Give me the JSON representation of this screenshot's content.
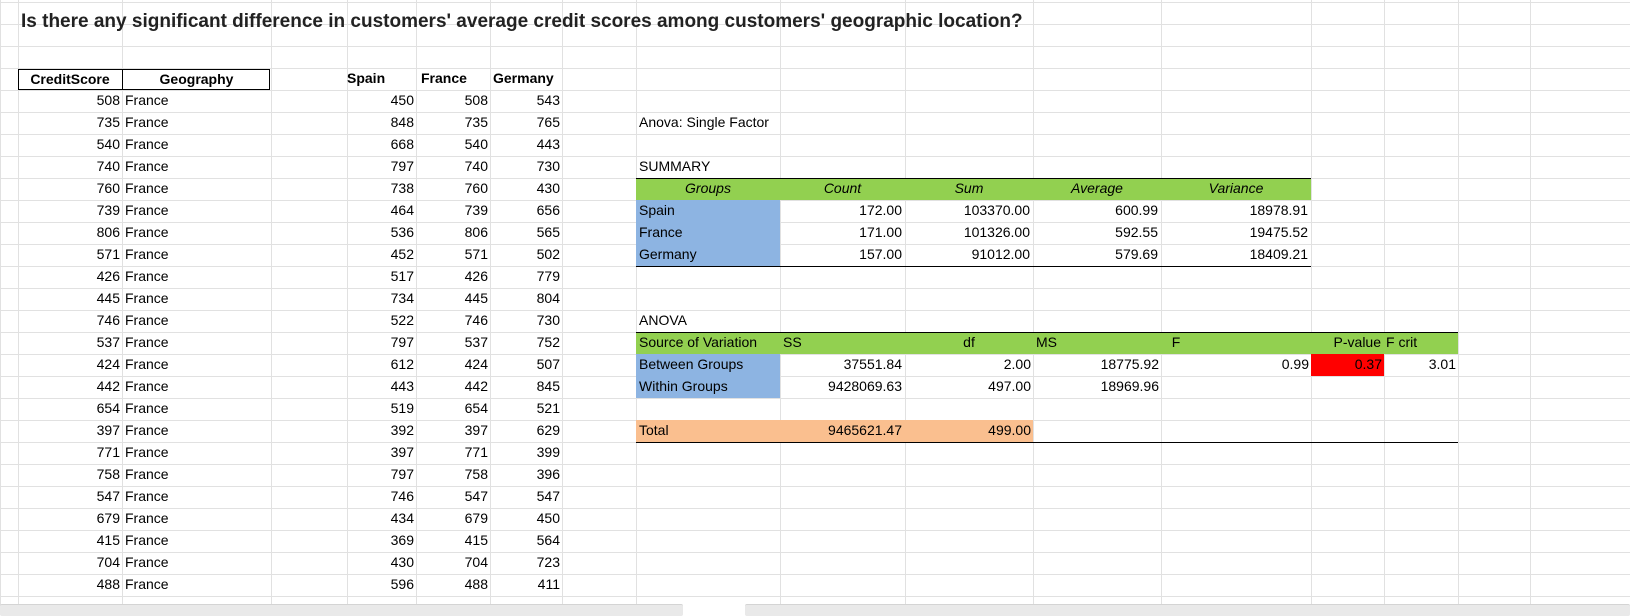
{
  "title": "Is there any significant difference in customers' average credit scores among customers' geographic location?",
  "source_table": {
    "headers": [
      "CreditScore",
      "Geography"
    ],
    "rows": [
      [
        508,
        "France"
      ],
      [
        735,
        "France"
      ],
      [
        540,
        "France"
      ],
      [
        740,
        "France"
      ],
      [
        760,
        "France"
      ],
      [
        739,
        "France"
      ],
      [
        806,
        "France"
      ],
      [
        571,
        "France"
      ],
      [
        426,
        "France"
      ],
      [
        445,
        "France"
      ],
      [
        746,
        "France"
      ],
      [
        537,
        "France"
      ],
      [
        424,
        "France"
      ],
      [
        442,
        "France"
      ],
      [
        654,
        "France"
      ],
      [
        397,
        "France"
      ],
      [
        771,
        "France"
      ],
      [
        758,
        "France"
      ],
      [
        547,
        "France"
      ],
      [
        679,
        "France"
      ],
      [
        415,
        "France"
      ],
      [
        704,
        "France"
      ],
      [
        488,
        "France"
      ]
    ]
  },
  "by_country": {
    "headers": [
      "Spain",
      "France",
      "Germany"
    ],
    "rows": [
      [
        450,
        508,
        543
      ],
      [
        848,
        735,
        765
      ],
      [
        668,
        540,
        443
      ],
      [
        797,
        740,
        730
      ],
      [
        738,
        760,
        430
      ],
      [
        464,
        739,
        656
      ],
      [
        536,
        806,
        565
      ],
      [
        452,
        571,
        502
      ],
      [
        517,
        426,
        779
      ],
      [
        734,
        445,
        804
      ],
      [
        522,
        746,
        730
      ],
      [
        797,
        537,
        752
      ],
      [
        612,
        424,
        507
      ],
      [
        443,
        442,
        845
      ],
      [
        519,
        654,
        521
      ],
      [
        392,
        397,
        629
      ],
      [
        397,
        771,
        399
      ],
      [
        797,
        758,
        396
      ],
      [
        746,
        547,
        547
      ],
      [
        434,
        679,
        450
      ],
      [
        369,
        415,
        564
      ],
      [
        430,
        704,
        723
      ],
      [
        596,
        488,
        411
      ]
    ]
  },
  "anova": {
    "title": "Anova: Single Factor",
    "summary_label": "SUMMARY",
    "summary_headers": [
      "Groups",
      "Count",
      "Sum",
      "Average",
      "Variance"
    ],
    "summary_rows": [
      [
        "Spain",
        "172.00",
        "103370.00",
        "600.99",
        "18978.91"
      ],
      [
        "France",
        "171.00",
        "101326.00",
        "592.55",
        "19475.52"
      ],
      [
        "Germany",
        "157.00",
        "91012.00",
        "579.69",
        "18409.21"
      ]
    ],
    "anova_label": "ANOVA",
    "anova_headers": [
      "Source of Variation",
      "SS",
      "df",
      "MS",
      "F",
      "P-value",
      "F crit"
    ],
    "anova_rows": [
      [
        "Between Groups",
        "37551.84",
        "2.00",
        "18775.92",
        "0.99",
        "0.37",
        "3.01"
      ],
      [
        "Within Groups",
        "9428069.63",
        "497.00",
        "18969.96",
        "",
        "",
        ""
      ]
    ],
    "total_row": [
      "Total",
      "9465621.47",
      "499.00"
    ]
  },
  "colors": {
    "header_green": "#92d050",
    "group_blue": "#8db4e2",
    "total_orange": "#fabf8f",
    "pvalue_red": "#ff0000",
    "gridline": "#e1e1e1"
  }
}
